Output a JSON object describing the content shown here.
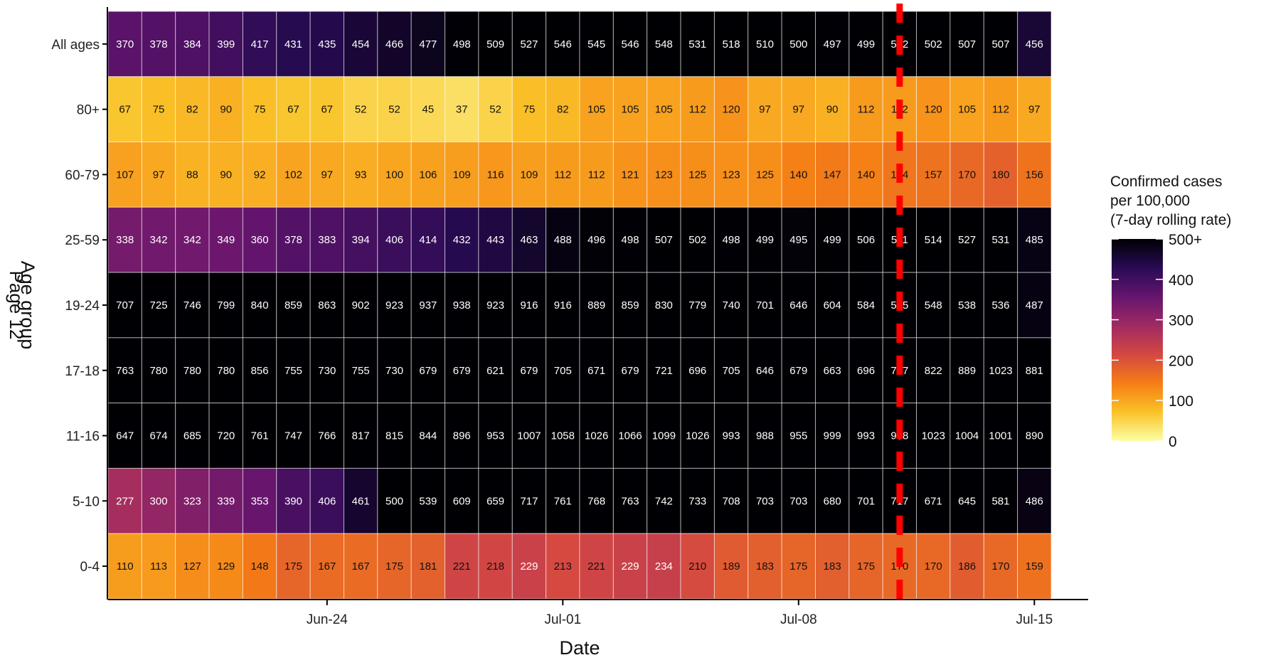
{
  "page_label": "Page 12",
  "chart_data": {
    "type": "heatmap",
    "title": "",
    "xlabel": "Date",
    "ylabel": "Age group",
    "x_tick_labels": [
      "Jun-24",
      "Jul-01",
      "Jul-08",
      "Jul-15"
    ],
    "x_tick_columns": [
      6,
      13,
      20,
      27
    ],
    "rows": [
      "All ages",
      "80+",
      "60-79",
      "25-59",
      "19-24",
      "17-18",
      "11-16",
      "5-10",
      "0-4"
    ],
    "values": [
      [
        370,
        378,
        384,
        399,
        417,
        431,
        435,
        454,
        466,
        477,
        498,
        509,
        527,
        546,
        545,
        546,
        548,
        531,
        518,
        510,
        500,
        497,
        499,
        502,
        502,
        507,
        507,
        456
      ],
      [
        67,
        75,
        82,
        90,
        75,
        67,
        67,
        52,
        52,
        45,
        37,
        52,
        75,
        82,
        105,
        105,
        105,
        112,
        120,
        97,
        97,
        90,
        112,
        112,
        120,
        105,
        112,
        97
      ],
      [
        107,
        97,
        88,
        90,
        92,
        102,
        97,
        93,
        100,
        106,
        109,
        116,
        109,
        112,
        112,
        121,
        123,
        125,
        123,
        125,
        140,
        147,
        140,
        154,
        157,
        170,
        180,
        156
      ],
      [
        338,
        342,
        342,
        349,
        360,
        378,
        383,
        394,
        406,
        414,
        432,
        443,
        463,
        488,
        496,
        498,
        507,
        502,
        498,
        499,
        495,
        499,
        506,
        511,
        514,
        527,
        531,
        485
      ],
      [
        707,
        725,
        746,
        799,
        840,
        859,
        863,
        902,
        923,
        937,
        938,
        923,
        916,
        916,
        889,
        859,
        830,
        779,
        740,
        701,
        646,
        604,
        584,
        565,
        548,
        538,
        536,
        487
      ],
      [
        763,
        780,
        780,
        780,
        856,
        755,
        730,
        755,
        730,
        679,
        679,
        621,
        679,
        705,
        671,
        679,
        721,
        696,
        705,
        646,
        679,
        663,
        696,
        747,
        822,
        889,
        1023,
        881
      ],
      [
        647,
        674,
        685,
        720,
        761,
        747,
        766,
        817,
        815,
        844,
        896,
        953,
        1007,
        1058,
        1026,
        1066,
        1099,
        1026,
        993,
        988,
        955,
        999,
        993,
        988,
        1023,
        1004,
        1001,
        890
      ],
      [
        277,
        300,
        323,
        339,
        353,
        390,
        406,
        461,
        500,
        539,
        609,
        659,
        717,
        761,
        768,
        763,
        742,
        733,
        708,
        703,
        703,
        680,
        701,
        717,
        671,
        645,
        581,
        486
      ],
      [
        110,
        113,
        127,
        129,
        148,
        175,
        167,
        167,
        175,
        181,
        221,
        218,
        229,
        213,
        221,
        229,
        234,
        210,
        189,
        183,
        175,
        183,
        175,
        170,
        170,
        186,
        170,
        159
      ]
    ],
    "vline_after_column": 23,
    "vline_color": "#ff0000",
    "color_scale": {
      "name": "inferno (reversed), capped",
      "min": 0,
      "max": 500,
      "cap_label": "500+",
      "stops": [
        "#fcffa4",
        "#fac228",
        "#f57d15",
        "#d44842",
        "#9f2a63",
        "#65156e",
        "#280b53",
        "#000004"
      ]
    },
    "legend": {
      "title_lines": [
        "Confirmed cases",
        " per 100,000",
        " (7-day rolling rate)"
      ],
      "ticks": [
        "0",
        "100",
        "200",
        "300",
        "400",
        "500+"
      ],
      "placement": "right"
    },
    "grid": false
  }
}
